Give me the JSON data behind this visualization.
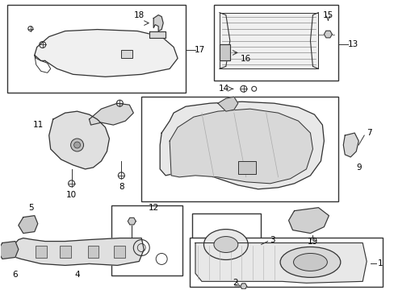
{
  "background_color": "#ffffff",
  "line_color": "#333333",
  "text_color": "#000000",
  "fig_width": 4.89,
  "fig_height": 3.6,
  "dpi": 100
}
